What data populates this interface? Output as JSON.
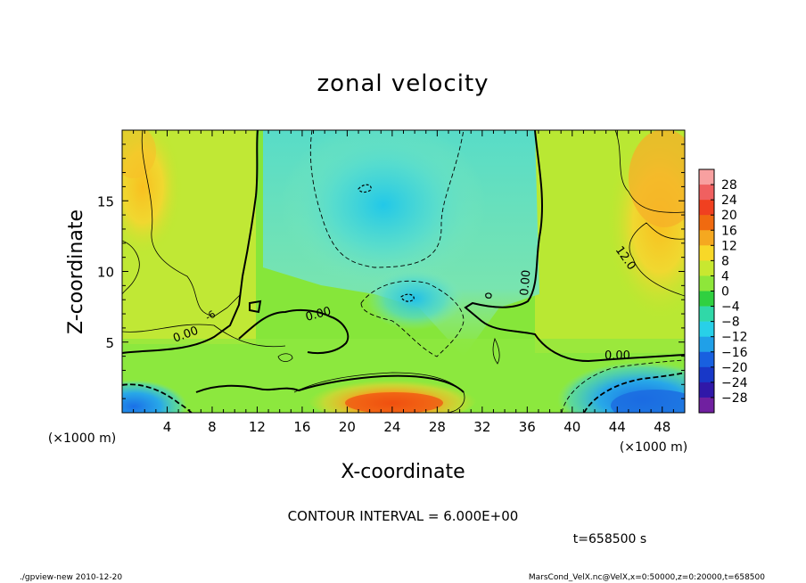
{
  "chart_data": {
    "type": "heatmap",
    "title": "zonal velocity",
    "xlabel": "X-coordinate",
    "ylabel": "Z-coordinate",
    "x_unit": "(×1000 m)",
    "z_unit": "(×1000 m)",
    "xlim": [
      0,
      50
    ],
    "zlim": [
      0,
      20
    ],
    "x_ticks": [
      4,
      8,
      12,
      16,
      20,
      24,
      28,
      32,
      36,
      40,
      44,
      48
    ],
    "z_ticks": [
      5,
      10,
      15
    ],
    "colorbar": {
      "levels": [
        28,
        24,
        20,
        16,
        12,
        8,
        4,
        0,
        -4,
        -8,
        -12,
        -16,
        -20,
        -24,
        -28
      ],
      "labels": [
        "28",
        "24",
        "20",
        "16",
        "12",
        "8",
        "4",
        "0",
        "−4",
        "−8",
        "−12",
        "−16",
        "−20",
        "−24",
        "−28"
      ]
    },
    "contour_labels": [
      {
        "text": "0.00",
        "x": 8,
        "z": 5.7
      },
      {
        "text": "0.00",
        "x": 17.5,
        "z": 6.9
      },
      {
        "text": "0.00",
        "x": 36.5,
        "z": 9.5
      },
      {
        "text": "0.00",
        "x": 44.5,
        "z": 4.0
      },
      {
        "text": "12.0",
        "x": 45.5,
        "z": 9.5
      },
      {
        "text": "-6",
        "x": 8.3,
        "z": 6.5
      }
    ],
    "contour_interval": "CONTOUR INTERVAL = 6.000E+00",
    "time": "t=658500 s"
  },
  "footer": {
    "left": "./gpview-new  2010-12-20",
    "right": "MarsCond_VelX.nc@VelX,x=0:50000,z=0:20000,t=658500"
  }
}
